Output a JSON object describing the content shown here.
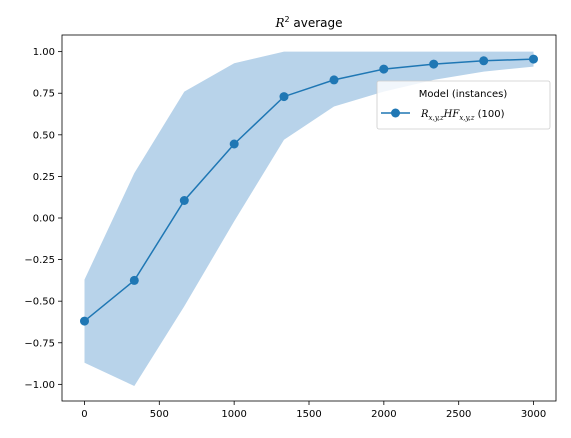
{
  "chart_data": {
    "type": "line",
    "title_base": "R",
    "title_sup": "2",
    "title_rest": " average",
    "xlabel": "",
    "ylabel": "",
    "xlim": [
      -150,
      3150
    ],
    "ylim": [
      -1.1,
      1.1
    ],
    "xticks": [
      0,
      500,
      1000,
      1500,
      2000,
      2500,
      3000
    ],
    "xtick_labels": [
      "0",
      "500",
      "1000",
      "1500",
      "2000",
      "2500",
      "3000"
    ],
    "yticks": [
      -1.0,
      -0.75,
      -0.5,
      -0.25,
      0.0,
      0.25,
      0.5,
      0.75,
      1.0
    ],
    "ytick_labels": [
      "−1.00",
      "−0.75",
      "−0.50",
      "−0.25",
      "0.00",
      "0.25",
      "0.50",
      "0.75",
      "1.00"
    ],
    "grid": false,
    "legend": {
      "title": "Model (instances)",
      "placement": "upper-right",
      "entry_base": "R",
      "entry_sub1": "x,y,z",
      "entry_mid": "HF",
      "entry_sub2": "x,y,z",
      "entry_rest": " (100)"
    },
    "series": [
      {
        "x": [
          0,
          333,
          667,
          1000,
          1333,
          1667,
          2000,
          2333,
          2667,
          3000
        ],
        "y": [
          -0.62,
          -0.375,
          0.105,
          0.445,
          0.73,
          0.83,
          0.895,
          0.925,
          0.945,
          0.955
        ],
        "band_upper": [
          -0.37,
          0.27,
          0.76,
          0.93,
          1.0,
          1.0,
          1.0,
          1.0,
          1.0,
          1.0
        ],
        "band_lower": [
          -0.87,
          -1.01,
          -0.53,
          -0.02,
          0.47,
          0.67,
          0.76,
          0.83,
          0.88,
          0.91
        ],
        "color": "#1f77b4",
        "band_color": "#b8d3ea"
      }
    ]
  }
}
